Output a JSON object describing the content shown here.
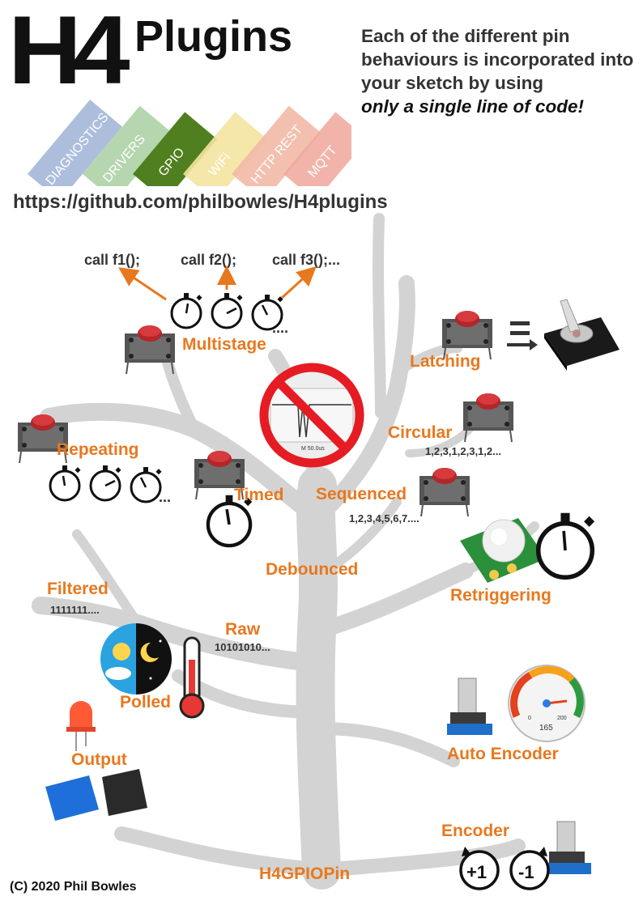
{
  "header": {
    "logo_h4": "H4",
    "logo_plugins": "Plugins",
    "intro_line": "Each of the different pin behaviours is incorporated into your sketch by using",
    "intro_emphasis": "only a single line of code!",
    "url": "https://github.com/philbowles/H4plugins"
  },
  "plugin_bricks": [
    {
      "label": "DIAGNOSTICS",
      "color": "#9fb3d6"
    },
    {
      "label": "DRIVERS",
      "color": "#a8cfa0"
    },
    {
      "label": "GPIO",
      "color": "#4f7f1e"
    },
    {
      "label": "WiFi",
      "color": "#f4e3a0"
    },
    {
      "label": "HTTP REST",
      "color": "#f2b9a6"
    },
    {
      "label": "MQTT",
      "color": "#f0a79b"
    }
  ],
  "calls": [
    "call f1();",
    "call f2();",
    "call f3();..."
  ],
  "ellipsis": "....",
  "behaviours": {
    "multistage": "Multistage",
    "latching": "Latching",
    "circular": "Circular",
    "circular_seq": "1,2,3,1,2,3,1,2...",
    "repeating": "Repeating",
    "repeating_ellipsis": "...",
    "timed": "Timed",
    "sequenced": "Sequenced",
    "sequenced_seq": "1,2,3,4,5,6,7....",
    "debounced": "Debounced",
    "retriggering": "Retriggering",
    "filtered": "Filtered",
    "filtered_seq": "1111111....",
    "raw": "Raw",
    "raw_seq": "10101010...",
    "polled": "Polled",
    "output": "Output",
    "auto_encoder": "Auto Encoder",
    "encoder": "Encoder",
    "root": "H4GPIOPin"
  },
  "gauge": {
    "low": "0",
    "high": "200",
    "value": "165"
  },
  "encoder_steps": {
    "plus": "+1",
    "minus": "-1"
  },
  "oscilloscope_label": "M 50.0us",
  "copyright": "(C) 2020 Phil Bowles",
  "colors": {
    "accent": "#e8781e",
    "tree": "#d3d3d3",
    "no_sign": "#e51c23",
    "text": "#333333"
  }
}
